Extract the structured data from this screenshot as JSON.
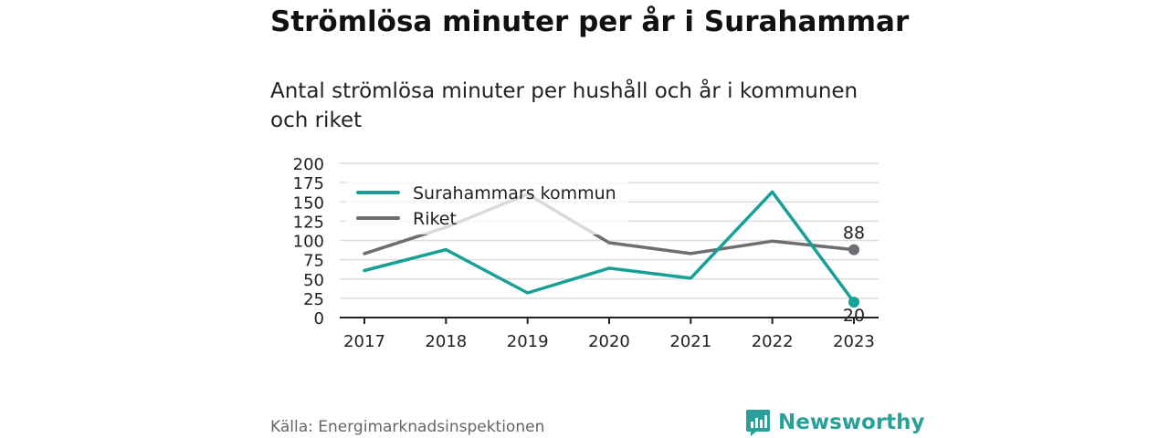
{
  "title": "Strömlösa minuter per år i Surahammar",
  "subtitle": "Antal strömlösa minuter per hushåll och år i kommunen och riket",
  "source": "Källa: Energimarknadsinspektionen",
  "brand": {
    "name": "Newsworthy",
    "icon": "newsworthy-logo-icon",
    "color": "#2aa198"
  },
  "chart_data": {
    "type": "line",
    "categories": [
      "2017",
      "2018",
      "2019",
      "2020",
      "2021",
      "2022",
      "2023"
    ],
    "series": [
      {
        "name": "Surahammars kommun",
        "color": "#17a096",
        "values": [
          61,
          88,
          32,
          64,
          51,
          163,
          20
        ]
      },
      {
        "name": "Riket",
        "color": "#6e6d73",
        "values": [
          83,
          117,
          160,
          97,
          83,
          99,
          88
        ]
      }
    ],
    "yticks": [
      0,
      25,
      50,
      75,
      100,
      125,
      150,
      175,
      200
    ],
    "ylim": [
      0,
      200
    ],
    "end_labels": [
      "20",
      "88"
    ],
    "grid": true,
    "legend_position": "top-left"
  }
}
